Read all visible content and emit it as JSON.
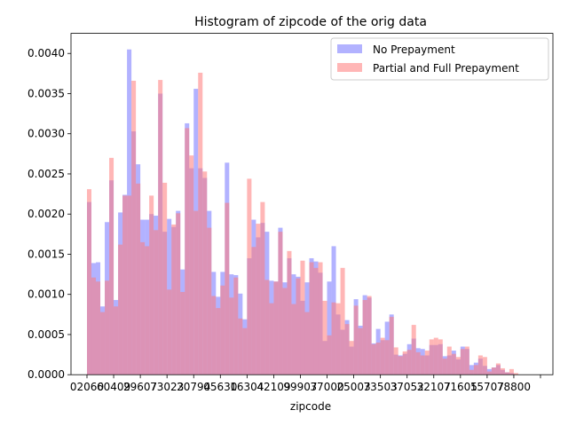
{
  "chart_data": {
    "type": "bar",
    "title": "Histogram of zipcode of the orig data",
    "xlabel": "zipcode",
    "ylabel": "",
    "ylim": [
      0,
      0.00425
    ],
    "grid": false,
    "legend_position": "top-right",
    "y_ticks": [
      "0.0000",
      "0.0005",
      "0.0010",
      "0.0015",
      "0.0020",
      "0.0025",
      "0.0030",
      "0.0035",
      "0.0040"
    ],
    "y_tick_values": [
      0,
      0.0005,
      0.001,
      0.0015,
      0.002,
      0.0025,
      0.003,
      0.0035,
      0.004
    ],
    "x_tick_labels": [
      "02060",
      "60409",
      "29607",
      "73023",
      "20794",
      "05630",
      "16304",
      "42109",
      "99907",
      "37000",
      "25003",
      "73503",
      "37052",
      "32107",
      "71605",
      "15707",
      "78800",
      ""
    ],
    "bin_count": 101,
    "series": [
      {
        "name": "No Prepayment",
        "color": "#6666ff",
        "opacity": 0.5,
        "values": [
          0.00215,
          0.00139,
          0.0014,
          0.00085,
          0.0019,
          0.00242,
          0.00093,
          0.00202,
          0.00224,
          0.00405,
          0.00303,
          0.00262,
          0.00193,
          0.00193,
          0.002,
          0.00198,
          0.0035,
          0.00178,
          0.00194,
          0.00184,
          0.00204,
          0.00131,
          0.00313,
          0.00257,
          0.00356,
          0.00257,
          0.00245,
          0.00204,
          0.00128,
          0.00097,
          0.00128,
          0.00264,
          0.00125,
          0.00124,
          0.00101,
          0.00069,
          0.00145,
          0.00193,
          0.00171,
          0.00189,
          0.00178,
          0.00117,
          0.00116,
          0.00183,
          0.00115,
          0.00145,
          0.00125,
          0.00122,
          0.00092,
          0.00115,
          0.00145,
          0.00141,
          0.00127,
          0.00042,
          0.00116,
          0.0016,
          0.00075,
          0.00056,
          0.00068,
          0.00035,
          0.00094,
          0.00061,
          0.00099,
          0.00096,
          0.00039,
          0.00057,
          0.00043,
          0.00066,
          0.00075,
          0.00025,
          0.00024,
          0.00026,
          0.00038,
          0.00045,
          0.00033,
          0.00032,
          0.00024,
          0.00037,
          0.00037,
          0.00038,
          0.00023,
          0.00024,
          0.0003,
          0.00019,
          0.00035,
          0.00032,
          0.00012,
          0.00015,
          0.0002,
          0.00011,
          7e-05,
          9e-05,
          0.00012,
          6e-05,
          3e-05,
          2e-05,
          0,
          0,
          0,
          0,
          0
        ]
      },
      {
        "name": "Partial and Full Prepayment",
        "color": "#ff7a7a",
        "opacity": 0.55,
        "values": [
          0.00231,
          0.00121,
          0.00116,
          0.00078,
          0.00117,
          0.0027,
          0.00085,
          0.00162,
          0.00223,
          0.00223,
          0.00366,
          0.00238,
          0.00165,
          0.0016,
          0.00223,
          0.0018,
          0.00367,
          0.00239,
          0.00106,
          0.00187,
          0.00201,
          0.00103,
          0.00307,
          0.00273,
          0.00204,
          0.00376,
          0.00253,
          0.00183,
          0.00098,
          0.00083,
          0.00111,
          0.00214,
          0.00096,
          0.00121,
          0.0007,
          0.00058,
          0.00244,
          0.00159,
          0.00188,
          0.00215,
          0.00118,
          0.00089,
          0.00116,
          0.00178,
          0.00108,
          0.00154,
          0.00088,
          0.0012,
          0.00142,
          0.00078,
          0.0014,
          0.00133,
          0.0014,
          0.00092,
          0.00049,
          0.0009,
          0.00089,
          0.00133,
          0.00063,
          0.00042,
          0.00086,
          0.00058,
          0.00093,
          0.00098,
          0.00038,
          0.0004,
          0.00046,
          0.00043,
          0.00072,
          0.00034,
          0.00023,
          0.00029,
          0.00031,
          0.00062,
          0.00028,
          0.00024,
          0.0003,
          0.00044,
          0.00046,
          0.00044,
          0.0002,
          0.00035,
          0.00026,
          0.00022,
          0.00032,
          0.00035,
          6e-05,
          0.00012,
          0.00024,
          0.00022,
          4e-05,
          9e-05,
          0.00014,
          8e-05,
          3e-05,
          7e-05,
          2e-05,
          0,
          0,
          0,
          0
        ]
      }
    ]
  }
}
